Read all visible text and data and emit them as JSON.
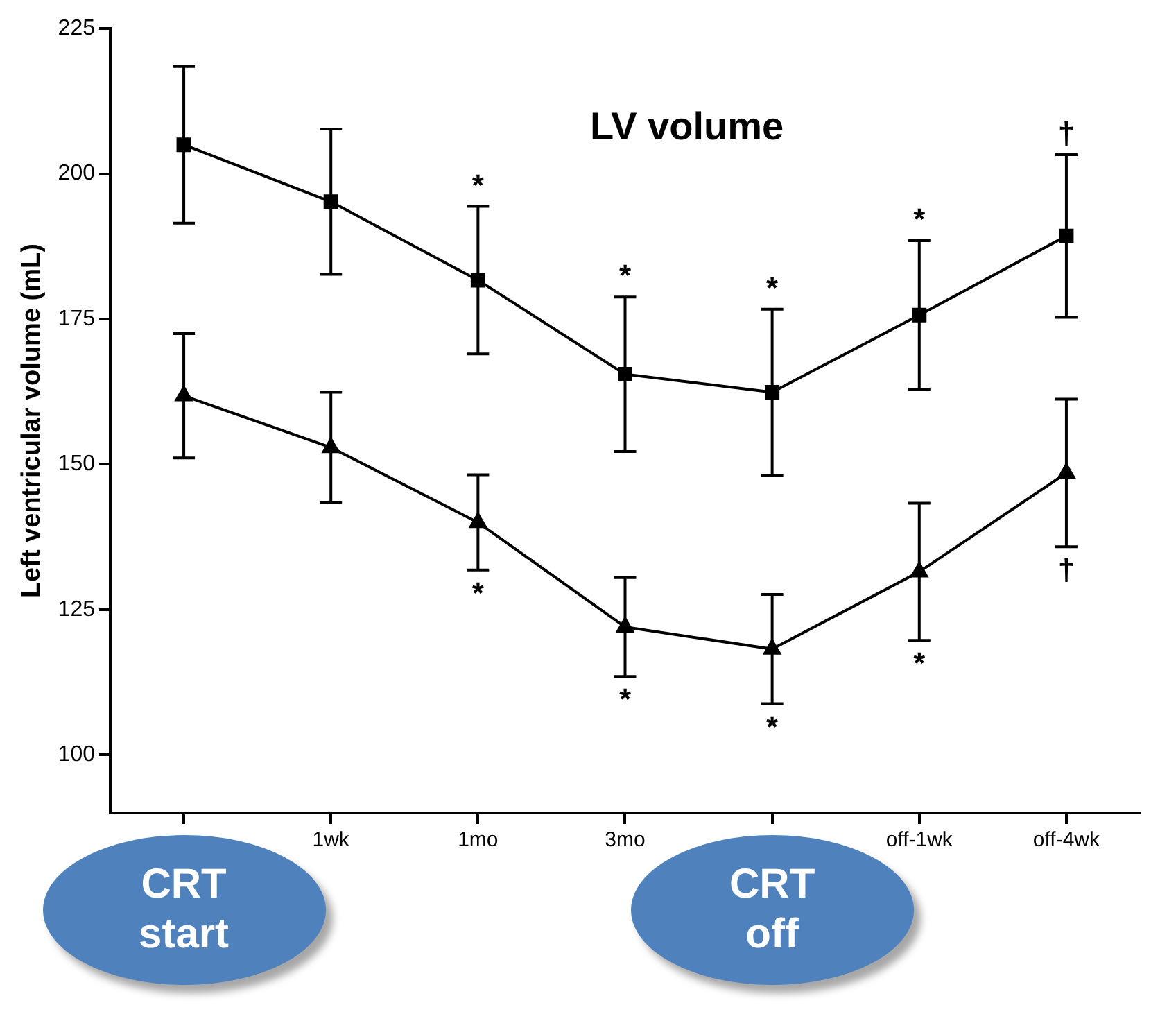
{
  "chart_data": {
    "type": "line",
    "title": "LV volume",
    "ylabel": "Left ventricular volume (mL)",
    "categories": [
      "CRT start",
      "1wk",
      "1mo",
      "3mo",
      "CRT off",
      "off-1wk",
      "off-4wk"
    ],
    "series": [
      {
        "color": "#000000",
        "marker": "square",
        "values": [
          205,
          195.2,
          181.7,
          165.5,
          162.4,
          175.7,
          189.3
        ],
        "errors": [
          13.5,
          12.5,
          12.7,
          13.3,
          14.3,
          12.8,
          14
        ],
        "value_labels": [
          null,
          null,
          "*",
          "*",
          "*",
          "*",
          "†"
        ]
      },
      {
        "color": "#000000",
        "marker": "triangle",
        "values": [
          161.8,
          152.9,
          140,
          122,
          118.2,
          131.5,
          148.5
        ],
        "errors": [
          10.7,
          9.5,
          8.2,
          8.5,
          9.4,
          11.8,
          12.7
        ],
        "value_labels": [
          null,
          null,
          "*",
          "*",
          "*",
          "*",
          "†"
        ]
      }
    ],
    "ylim": [
      90,
      225
    ],
    "yticks": [
      100,
      125,
      150,
      175,
      200,
      225
    ],
    "grid": false,
    "legend": false,
    "line_style": "solid"
  }
}
